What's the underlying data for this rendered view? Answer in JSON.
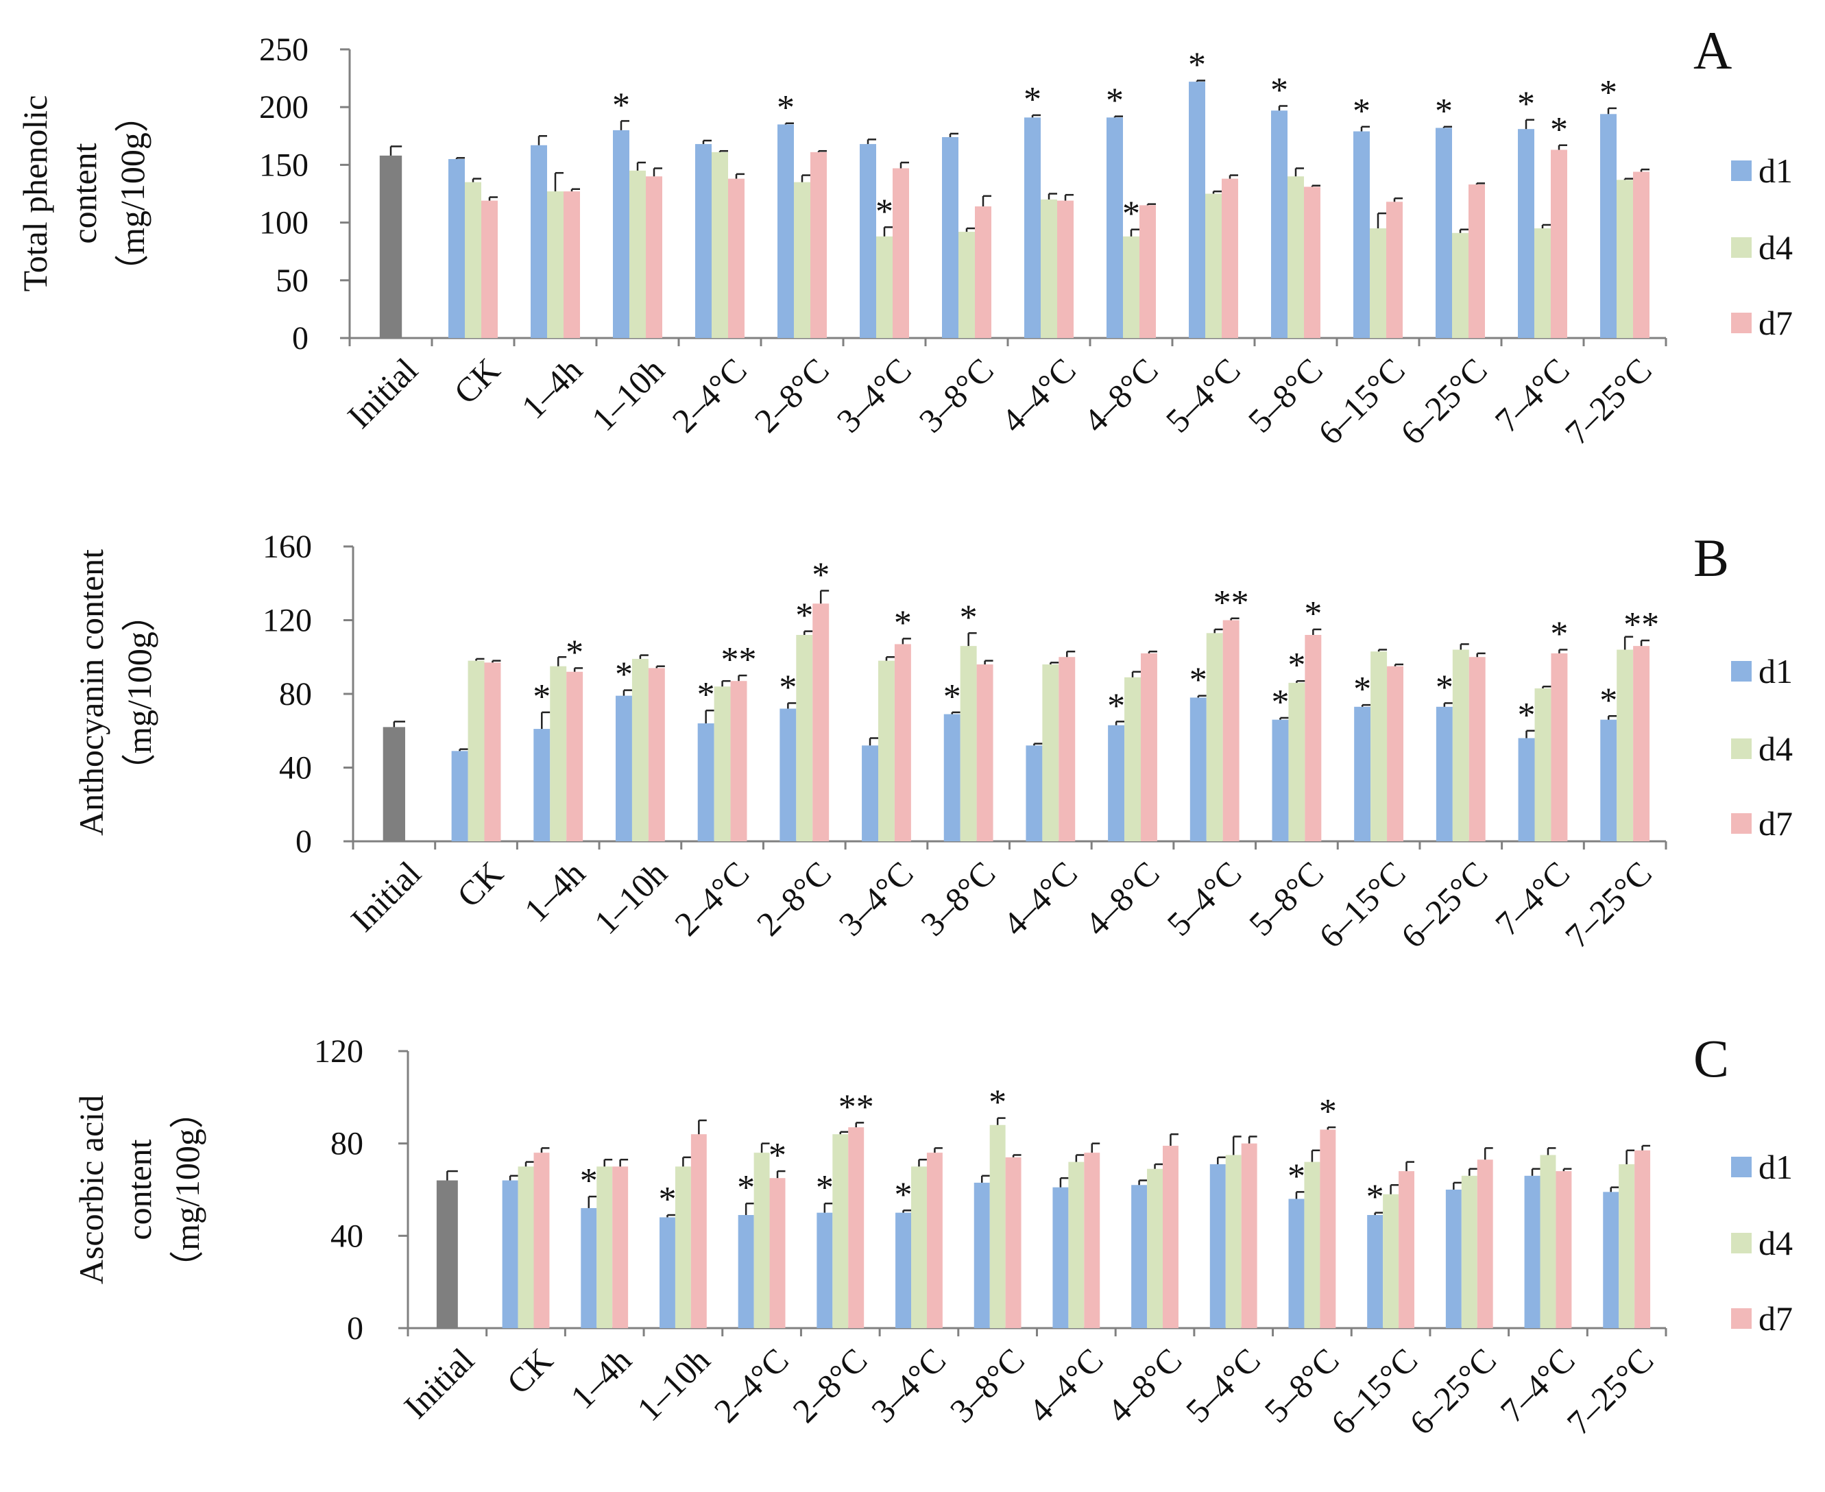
{
  "colors": {
    "d1": "#8db3e2",
    "d4": "#d7e4bd",
    "d7": "#f2b9b9",
    "initial": "#7f7f7f",
    "axis": "#808080",
    "error": "#222222"
  },
  "chart_data": [
    {
      "type": "bar",
      "panel": "A",
      "ylabel_lines": [
        "Total phenolic",
        "content",
        "（mg/100g）"
      ],
      "ylim": [
        0,
        250
      ],
      "yticks": [
        0,
        50,
        100,
        150,
        200,
        250
      ],
      "ytick_labels": [
        "0",
        "50",
        "100",
        "150",
        "200",
        "250"
      ],
      "initial": {
        "label": "Initial",
        "value": 158,
        "err": 8
      },
      "categories": [
        "CK",
        "1–4h",
        "1–10h",
        "2–4°C",
        "2–8°C",
        "3–4°C",
        "3–8°C",
        "4–4°C",
        "4–8°C",
        "5–4°C",
        "5–8°C",
        "6–15°C",
        "6–25°C",
        "7–4°C",
        "7–25°C"
      ],
      "series": [
        {
          "name": "d1",
          "values": [
            155,
            167,
            180,
            168,
            185,
            168,
            174,
            191,
            191,
            222,
            197,
            179,
            182,
            181,
            194
          ],
          "errors": [
            1,
            8,
            8,
            3,
            1,
            4,
            3,
            2,
            1,
            1,
            4,
            4,
            1,
            8,
            5
          ]
        },
        {
          "name": "d4",
          "values": [
            135,
            127,
            145,
            161,
            135,
            88,
            92,
            120,
            88,
            125,
            140,
            95,
            91,
            95,
            137
          ],
          "errors": [
            3,
            16,
            7,
            1,
            6,
            8,
            3,
            5,
            6,
            2,
            7,
            13,
            3,
            3,
            1
          ]
        },
        {
          "name": "d7",
          "values": [
            119,
            127,
            140,
            138,
            161,
            147,
            114,
            119,
            115,
            138,
            131,
            118,
            133,
            163,
            144
          ],
          "errors": [
            3,
            2,
            7,
            4,
            1,
            5,
            9,
            5,
            1,
            3,
            1,
            3,
            1,
            4,
            2
          ]
        }
      ],
      "annotations": [
        {
          "text": "*",
          "index": 2,
          "series": "d1"
        },
        {
          "text": "*",
          "index": 4,
          "series": "d1"
        },
        {
          "text": "*",
          "index": 5,
          "series": "d4"
        },
        {
          "text": "*",
          "index": 7,
          "series": "d1"
        },
        {
          "text": "*",
          "index": 8,
          "series": "d1"
        },
        {
          "text": "*",
          "index": 8,
          "series": "d4"
        },
        {
          "text": "*",
          "index": 9,
          "series": "d1"
        },
        {
          "text": "*",
          "index": 10,
          "series": "d1"
        },
        {
          "text": "*",
          "index": 11,
          "series": "d1"
        },
        {
          "text": "*",
          "index": 12,
          "series": "d1"
        },
        {
          "text": "*",
          "index": 13,
          "series": "d1"
        },
        {
          "text": "*",
          "index": 13,
          "series": "d7"
        },
        {
          "text": "*",
          "index": 14,
          "series": "d1"
        }
      ],
      "legend": [
        "d1",
        "d4",
        "d7"
      ]
    },
    {
      "type": "bar",
      "panel": "B",
      "ylabel_lines": [
        "Anthocyanin content",
        "（mg/100g）"
      ],
      "ylim": [
        0,
        160
      ],
      "yticks": [
        0,
        40,
        80,
        120,
        160
      ],
      "ytick_labels": [
        "0",
        "40",
        "80",
        "120",
        "160"
      ],
      "initial": {
        "label": "Initial",
        "value": 62,
        "err": 3
      },
      "categories": [
        "CK",
        "1–4h",
        "1–10h",
        "2–4°C",
        "2–8°C",
        "3–4°C",
        "3–8°C",
        "4–4°C",
        "4–8°C",
        "5–4°C",
        "5–8°C",
        "6–15°C",
        "6–25°C",
        "7–4°C",
        "7–25°C"
      ],
      "series": [
        {
          "name": "d1",
          "values": [
            49,
            61,
            79,
            64,
            72,
            52,
            69,
            52,
            63,
            78,
            66,
            73,
            73,
            56,
            66
          ],
          "errors": [
            1,
            9,
            3,
            7,
            3,
            4,
            1,
            1,
            2,
            1,
            1,
            1,
            2,
            4,
            2
          ]
        },
        {
          "name": "d4",
          "values": [
            98,
            95,
            99,
            84,
            112,
            98,
            106,
            96,
            89,
            113,
            86,
            103,
            104,
            83,
            104
          ],
          "errors": [
            1,
            5,
            2,
            3,
            2,
            2,
            7,
            1,
            3,
            2,
            1,
            1,
            3,
            1,
            7
          ]
        },
        {
          "name": "d7",
          "values": [
            97,
            92,
            94,
            87,
            129,
            107,
            96,
            100,
            102,
            120,
            112,
            95,
            100,
            102,
            106
          ],
          "errors": [
            1,
            2,
            1,
            3,
            7,
            3,
            2,
            3,
            1,
            1,
            3,
            1,
            2,
            2,
            3
          ]
        }
      ],
      "annotations": [
        {
          "text": "*",
          "index": 1,
          "series": "d1"
        },
        {
          "text": "*",
          "index": 1,
          "series": "d7"
        },
        {
          "text": "*",
          "index": 2,
          "series": "d1"
        },
        {
          "text": "*",
          "index": 3,
          "series": "d1"
        },
        {
          "text": "**",
          "index": 3,
          "series": "d7"
        },
        {
          "text": "*",
          "index": 4,
          "series": "d1"
        },
        {
          "text": "*",
          "index": 4,
          "series": "d4"
        },
        {
          "text": "*",
          "index": 4,
          "series": "d7"
        },
        {
          "text": "*",
          "index": 5,
          "series": "d7"
        },
        {
          "text": "*",
          "index": 6,
          "series": "d1"
        },
        {
          "text": "*",
          "index": 6,
          "series": "d4"
        },
        {
          "text": "*",
          "index": 8,
          "series": "d1"
        },
        {
          "text": "*",
          "index": 9,
          "series": "d1"
        },
        {
          "text": "**",
          "index": 9,
          "series": "d7"
        },
        {
          "text": "*",
          "index": 10,
          "series": "d1"
        },
        {
          "text": "*",
          "index": 10,
          "series": "d4"
        },
        {
          "text": "*",
          "index": 10,
          "series": "d7"
        },
        {
          "text": "*",
          "index": 11,
          "series": "d1"
        },
        {
          "text": "*",
          "index": 12,
          "series": "d1"
        },
        {
          "text": "*",
          "index": 13,
          "series": "d1"
        },
        {
          "text": "*",
          "index": 13,
          "series": "d7"
        },
        {
          "text": "*",
          "index": 14,
          "series": "d1"
        },
        {
          "text": "**",
          "index": 14,
          "series": "d7"
        }
      ],
      "legend": [
        "d1",
        "d4",
        "d7"
      ]
    },
    {
      "type": "bar",
      "panel": "C",
      "ylabel_lines": [
        "Ascorbic acid",
        "content",
        "（mg/100g）"
      ],
      "ylim": [
        0,
        120
      ],
      "yticks": [
        0,
        40,
        80,
        120
      ],
      "ytick_labels": [
        "0",
        "40",
        "80",
        "120"
      ],
      "initial": {
        "label": "Initial",
        "value": 64,
        "err": 4
      },
      "categories": [
        "CK",
        "1–4h",
        "1–10h",
        "2–4°C",
        "2–8°C",
        "3–4°C",
        "3–8°C",
        "4–4°C",
        "4–8°C",
        "5–4°C",
        "5–8°C",
        "6–15°C",
        "6–25°C",
        "7–4°C",
        "7–25°C"
      ],
      "series": [
        {
          "name": "d1",
          "values": [
            64,
            52,
            48,
            49,
            50,
            50,
            63,
            61,
            62,
            71,
            56,
            49,
            60,
            66,
            59
          ],
          "errors": [
            2,
            5,
            1,
            5,
            4,
            1,
            3,
            4,
            2,
            3,
            3,
            1,
            3,
            3,
            2
          ]
        },
        {
          "name": "d4",
          "values": [
            70,
            70,
            70,
            76,
            84,
            70,
            88,
            72,
            69,
            75,
            72,
            58,
            66,
            75,
            71
          ],
          "errors": [
            2,
            3,
            4,
            4,
            1,
            3,
            3,
            3,
            2,
            8,
            5,
            4,
            3,
            3,
            6
          ]
        },
        {
          "name": "d7",
          "values": [
            76,
            70,
            84,
            65,
            87,
            76,
            74,
            76,
            79,
            80,
            86,
            68,
            73,
            68,
            77
          ],
          "errors": [
            2,
            3,
            6,
            3,
            2,
            2,
            1,
            4,
            5,
            3,
            1,
            4,
            5,
            1,
            2
          ]
        }
      ],
      "annotations": [
        {
          "text": "*",
          "index": 1,
          "series": "d1"
        },
        {
          "text": "*",
          "index": 2,
          "series": "d1"
        },
        {
          "text": "*",
          "index": 3,
          "series": "d1"
        },
        {
          "text": "*",
          "index": 3,
          "series": "d7"
        },
        {
          "text": "*",
          "index": 4,
          "series": "d1"
        },
        {
          "text": "**",
          "index": 4,
          "series": "d7"
        },
        {
          "text": "*",
          "index": 5,
          "series": "d1"
        },
        {
          "text": "*",
          "index": 6,
          "series": "d4"
        },
        {
          "text": "*",
          "index": 10,
          "series": "d1"
        },
        {
          "text": "*",
          "index": 10,
          "series": "d7"
        },
        {
          "text": "*",
          "index": 11,
          "series": "d1"
        }
      ],
      "legend": [
        "d1",
        "d4",
        "d7"
      ]
    }
  ]
}
